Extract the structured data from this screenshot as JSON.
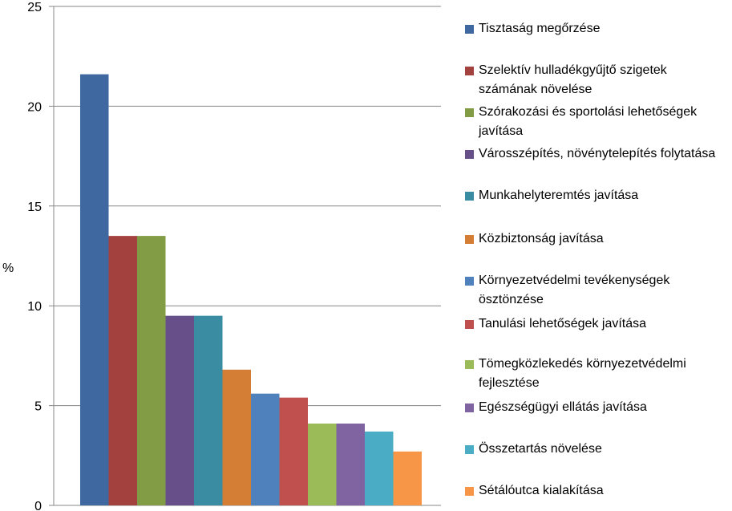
{
  "chart_data": {
    "type": "bar",
    "ylabel": "%",
    "ylim": [
      0,
      25
    ],
    "yticks": [
      "0",
      "5",
      "10",
      "15",
      "20",
      "25"
    ],
    "grid": true,
    "legend_position": "right",
    "series": [
      {
        "name": "Tisztaság megőrzése",
        "value": 21.6,
        "color": "#3f67a0"
      },
      {
        "name": "Szelektív hulladékgyűjtő szigetek számának növelése",
        "value": 13.5,
        "color": "#a3413f"
      },
      {
        "name": "Szórakozási és sportolási lehetőségek javítása",
        "value": 13.5,
        "color": "#829b45"
      },
      {
        "name": "Városszépítés, növénytelepítés folytatása",
        "value": 9.5,
        "color": "#67508a"
      },
      {
        "name": "Munkahelyteremtés javítása",
        "value": 9.5,
        "color": "#3a8ca2"
      },
      {
        "name": "Közbiztonság javítása",
        "value": 6.8,
        "color": "#d47d35"
      },
      {
        "name": "Környezetvédelmi tevékenységek ösztönzése",
        "value": 5.6,
        "color": "#4f81bd"
      },
      {
        "name": "Tanulási lehetőségek  javítása",
        "value": 5.4,
        "color": "#c0504d"
      },
      {
        "name": "Tömegközlekedés környezetvédelmi fejlesztése",
        "value": 4.1,
        "color": "#9bbb59"
      },
      {
        "name": "Egészségügyi ellátás javítása",
        "value": 4.1,
        "color": "#8064a2"
      },
      {
        "name": "Összetartás növelése",
        "value": 3.7,
        "color": "#4bacc6"
      },
      {
        "name": "Sétálóutca kialakítása",
        "value": 2.7,
        "color": "#f79646"
      }
    ]
  }
}
